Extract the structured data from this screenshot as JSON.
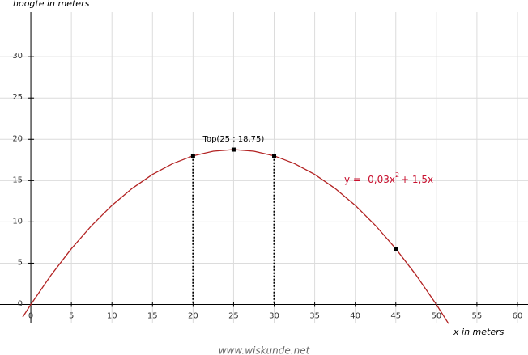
{
  "chart_data": {
    "type": "line",
    "title_y": "hoogte in meters",
    "title_x": "x in meters",
    "annotation": "Top(25 ; 18,75)",
    "equation": {
      "text": "y = -0,03x",
      "exponent": "2",
      "rest": "+ 1,5x",
      "color": "#c8102e"
    },
    "x": [
      -1,
      0,
      2.5,
      5,
      7.5,
      10,
      12.5,
      15,
      17.5,
      20,
      22.5,
      25,
      27.5,
      30,
      32.5,
      35,
      37.5,
      40,
      42.5,
      45,
      47.5,
      50,
      51.5
    ],
    "series": [
      {
        "color": "#b22222",
        "values": [
          -1.53,
          0,
          3.56,
          6.75,
          9.56,
          12,
          14.06,
          15.75,
          17.06,
          18,
          18.56,
          18.75,
          18.56,
          18,
          17.06,
          15.75,
          14.06,
          12,
          9.56,
          6.75,
          3.56,
          0,
          -2.32
        ]
      }
    ],
    "points": {
      "x": [
        20,
        25,
        30,
        45
      ],
      "values": [
        18,
        18.75,
        18,
        6.75
      ],
      "color": "#000000"
    },
    "drop_lines": [
      0,
      2
    ],
    "xlim": [
      -3.8,
      61.3
    ],
    "ylim": [
      -2.3,
      35.4
    ],
    "xticks": [
      0,
      5,
      10,
      15,
      20,
      25,
      30,
      35,
      40,
      45,
      50,
      55,
      60
    ],
    "yticks": [
      0,
      5,
      10,
      15,
      20,
      25,
      30
    ],
    "grid": true
  },
  "footer": "www.wiskunde.net"
}
